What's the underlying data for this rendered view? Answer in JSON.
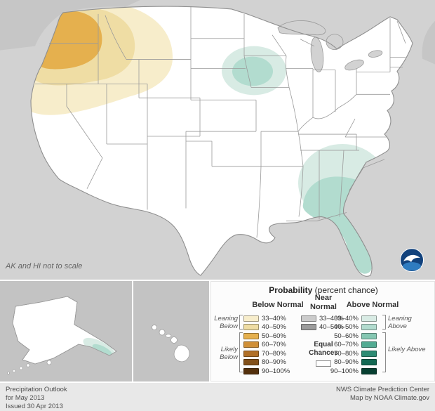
{
  "map": {
    "note": "AK and HI not to scale",
    "regions": [
      {
        "area": "Pacific Northwest (WA, OR, N CA, ID, W MT, N NV/UT, NW WY)",
        "category": "Below Normal",
        "levels": [
          "33–40%",
          "40–50%",
          "50–60%"
        ]
      },
      {
        "area": "Upper Midwest centered on Iowa",
        "category": "Above Normal",
        "levels": [
          "33–40%",
          "40–50%"
        ]
      },
      {
        "area": "Southeast (AL, GA, SC edge) and Florida peninsula",
        "category": "Above Normal",
        "levels": [
          "33–40%",
          "40–50%"
        ]
      },
      {
        "area": "Coastal southeast Louisiana spot",
        "category": "Above Normal",
        "levels": [
          "40–50%"
        ]
      },
      {
        "area": "Southeast Alaska panhandle",
        "category": "Above Normal",
        "levels": [
          "33–40%",
          "40–50%"
        ]
      }
    ],
    "noaa_logo": {
      "circle_color": "#12427c",
      "wave_color": "#2f7cc0"
    }
  },
  "legend": {
    "title": "Probability",
    "title_note": "(percent chance)",
    "columns": {
      "below": {
        "header": "Below Normal",
        "leaning_label": "Leaning Below",
        "likely_label": "Likely Below",
        "rows": [
          {
            "label": "33–40%",
            "color": "#f7edcb"
          },
          {
            "label": "40–50%",
            "color": "#efdda4"
          },
          {
            "label": "50–60%",
            "color": "#e5b04e"
          },
          {
            "label": "60–70%",
            "color": "#cf8f37"
          },
          {
            "label": "70–80%",
            "color": "#b06f27"
          },
          {
            "label": "80–90%",
            "color": "#82501a"
          },
          {
            "label": "90–100%",
            "color": "#53300c"
          }
        ]
      },
      "near": {
        "header": "Near Normal",
        "equal_label": "Equal Chances",
        "equal_color": "#ffffff",
        "rows": [
          {
            "label": "33–40%",
            "color": "#cbcbcb"
          },
          {
            "label": "40–50%",
            "color": "#9c9c9c"
          }
        ]
      },
      "above": {
        "header": "Above Normal",
        "leaning_label": "Leaning Above",
        "likely_label": "Likely Above",
        "rows": [
          {
            "label": "33–40%",
            "color": "#d8ebe4"
          },
          {
            "label": "40–50%",
            "color": "#b2dccf"
          },
          {
            "label": "50–60%",
            "color": "#85c7b2"
          },
          {
            "label": "60–70%",
            "color": "#52ab92"
          },
          {
            "label": "70–80%",
            "color": "#2d8b73"
          },
          {
            "label": "80–90%",
            "color": "#136853"
          },
          {
            "label": "90–100%",
            "color": "#073f31"
          }
        ]
      }
    }
  },
  "footer": {
    "left_lines": [
      "Precipitation Outlook",
      "for May 2013",
      "Issued 30 Apr 2013"
    ],
    "right_lines": [
      "NWS Climate Prediction Center",
      "Map by NOAA Climate.gov"
    ]
  }
}
